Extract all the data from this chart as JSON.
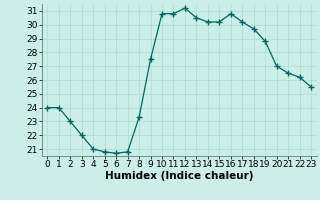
{
  "x": [
    0,
    1,
    2,
    3,
    4,
    5,
    6,
    7,
    8,
    9,
    10,
    11,
    12,
    13,
    14,
    15,
    16,
    17,
    18,
    19,
    20,
    21,
    22,
    23
  ],
  "y": [
    24.0,
    24.0,
    23.0,
    22.0,
    21.0,
    20.8,
    20.7,
    20.8,
    23.3,
    27.5,
    30.8,
    30.8,
    31.2,
    30.5,
    30.2,
    30.2,
    30.8,
    30.2,
    29.7,
    28.8,
    27.0,
    26.5,
    26.2,
    25.5
  ],
  "line_color": "#006666",
  "marker": "+",
  "marker_size": 4,
  "bg_color": "#cceee8",
  "grid_color": "#aaddcc",
  "xlabel": "Humidex (Indice chaleur)",
  "xlabel_fontsize": 7.5,
  "tick_fontsize": 6.5,
  "ylim_min": 20.5,
  "ylim_max": 31.5,
  "yticks": [
    21,
    22,
    23,
    24,
    25,
    26,
    27,
    28,
    29,
    30,
    31
  ],
  "xlim_min": -0.5,
  "xlim_max": 23.5,
  "xticks": [
    0,
    1,
    2,
    3,
    4,
    5,
    6,
    7,
    8,
    9,
    10,
    11,
    12,
    13,
    14,
    15,
    16,
    17,
    18,
    19,
    20,
    21,
    22,
    23
  ]
}
